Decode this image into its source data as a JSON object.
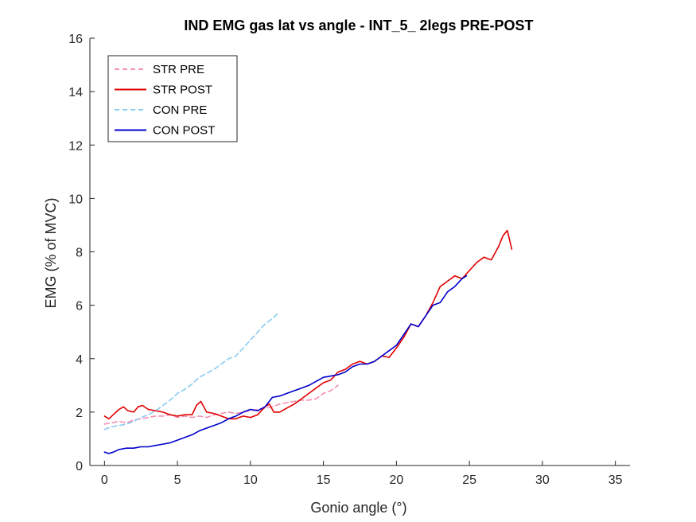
{
  "chart_data": {
    "type": "line",
    "title": "IND EMG gas lat vs angle - INT_5_ 2legs PRE-POST",
    "xlabel": "Gonio angle (°)",
    "ylabel": "EMG (% of MVC)",
    "xlim": [
      -1,
      36
    ],
    "ylim": [
      0,
      16
    ],
    "xticks": [
      0,
      5,
      10,
      15,
      20,
      25,
      30,
      35
    ],
    "yticks": [
      0,
      2,
      4,
      6,
      8,
      10,
      12,
      14,
      16
    ],
    "grid": false,
    "legend_position": "top-left",
    "series": [
      {
        "name": "STR PRE",
        "color": "#f48fb1",
        "dash": "dashed",
        "x": [
          0,
          0.5,
          1,
          1.5,
          2,
          2.5,
          3,
          3.5,
          4,
          4.5,
          5,
          5.5,
          6,
          6.5,
          7,
          7.5,
          8,
          8.5,
          9,
          9.5,
          10,
          10.5,
          11,
          11.5,
          12,
          12.5,
          13,
          13.5,
          14,
          14.5,
          15,
          15.5,
          16
        ],
        "y": [
          1.55,
          1.6,
          1.65,
          1.6,
          1.7,
          1.75,
          1.8,
          1.85,
          1.85,
          1.9,
          1.8,
          1.85,
          1.8,
          1.85,
          1.8,
          1.9,
          1.95,
          2.0,
          1.95,
          2.0,
          2.05,
          2.1,
          2.15,
          2.2,
          2.3,
          2.35,
          2.4,
          2.45,
          2.45,
          2.5,
          2.7,
          2.8,
          3.0
        ]
      },
      {
        "name": "STR POST",
        "color": "#e00000",
        "dash": "solid",
        "x": [
          0,
          0.3,
          0.6,
          1,
          1.3,
          1.6,
          2,
          2.3,
          2.6,
          3,
          3.5,
          4,
          4.5,
          5,
          5.5,
          6,
          6.3,
          6.6,
          7,
          7.5,
          8,
          8.5,
          9,
          9.5,
          10,
          10.5,
          11,
          11.3,
          11.6,
          12,
          12.5,
          13,
          13.5,
          14,
          14.5,
          15,
          15.5,
          16,
          16.5,
          17,
          17.5,
          18,
          18.5,
          19,
          19.5,
          20,
          20.5,
          21,
          21.5,
          22,
          22.5,
          23,
          23.5,
          24,
          24.5,
          25,
          25.5,
          26,
          26.5,
          27,
          27.3,
          27.6,
          27.9
        ],
        "y": [
          1.85,
          1.75,
          1.9,
          2.1,
          2.2,
          2.05,
          2.0,
          2.2,
          2.25,
          2.1,
          2.05,
          2.0,
          1.9,
          1.85,
          1.9,
          1.9,
          2.25,
          2.4,
          2.0,
          1.95,
          1.85,
          1.75,
          1.75,
          1.85,
          1.8,
          1.9,
          2.2,
          2.3,
          2.0,
          2.0,
          2.15,
          2.3,
          2.5,
          2.7,
          2.9,
          3.1,
          3.2,
          3.5,
          3.6,
          3.8,
          3.9,
          3.8,
          3.9,
          4.1,
          4.05,
          4.4,
          4.8,
          5.3,
          5.2,
          5.6,
          6.1,
          6.7,
          6.9,
          7.1,
          7.0,
          7.3,
          7.6,
          7.8,
          7.7,
          8.2,
          8.6,
          8.8,
          8.1
        ]
      },
      {
        "name": "CON PRE",
        "color": "#8ccbf2",
        "dash": "dashed",
        "x": [
          0,
          0.5,
          1,
          1.5,
          2,
          2.5,
          3,
          3.5,
          4,
          4.5,
          5,
          5.5,
          6,
          6.5,
          7,
          7.5,
          8,
          8.5,
          9,
          9.5,
          10,
          10.5,
          11,
          11.5,
          11.9
        ],
        "y": [
          1.35,
          1.45,
          1.5,
          1.55,
          1.65,
          1.8,
          1.9,
          2.05,
          2.25,
          2.45,
          2.7,
          2.85,
          3.05,
          3.3,
          3.45,
          3.6,
          3.8,
          4.0,
          4.1,
          4.4,
          4.7,
          5.0,
          5.3,
          5.5,
          5.7
        ]
      },
      {
        "name": "CON POST",
        "color": "#0000cc",
        "dash": "solid",
        "x": [
          0,
          0.3,
          0.6,
          1,
          1.5,
          2,
          2.5,
          3,
          3.5,
          4,
          4.5,
          5,
          5.5,
          6,
          6.5,
          7,
          7.5,
          8,
          8.5,
          9,
          9.5,
          10,
          10.5,
          11,
          11.5,
          12,
          12.5,
          13,
          13.5,
          14,
          14.5,
          15,
          15.5,
          16,
          16.5,
          17,
          17.5,
          18,
          18.5,
          19,
          19.5,
          20,
          20.5,
          21,
          21.5,
          22,
          22.5,
          23,
          23.5,
          24,
          24.5,
          24.8
        ],
        "y": [
          0.5,
          0.45,
          0.5,
          0.6,
          0.65,
          0.65,
          0.7,
          0.7,
          0.75,
          0.8,
          0.85,
          0.95,
          1.05,
          1.15,
          1.3,
          1.4,
          1.5,
          1.6,
          1.75,
          1.85,
          2.0,
          2.1,
          2.05,
          2.2,
          2.55,
          2.6,
          2.7,
          2.8,
          2.9,
          3.0,
          3.15,
          3.3,
          3.35,
          3.4,
          3.5,
          3.7,
          3.8,
          3.8,
          3.9,
          4.1,
          4.3,
          4.5,
          4.9,
          5.3,
          5.2,
          5.6,
          6.0,
          6.1,
          6.5,
          6.7,
          7.0,
          7.1
        ]
      }
    ]
  }
}
